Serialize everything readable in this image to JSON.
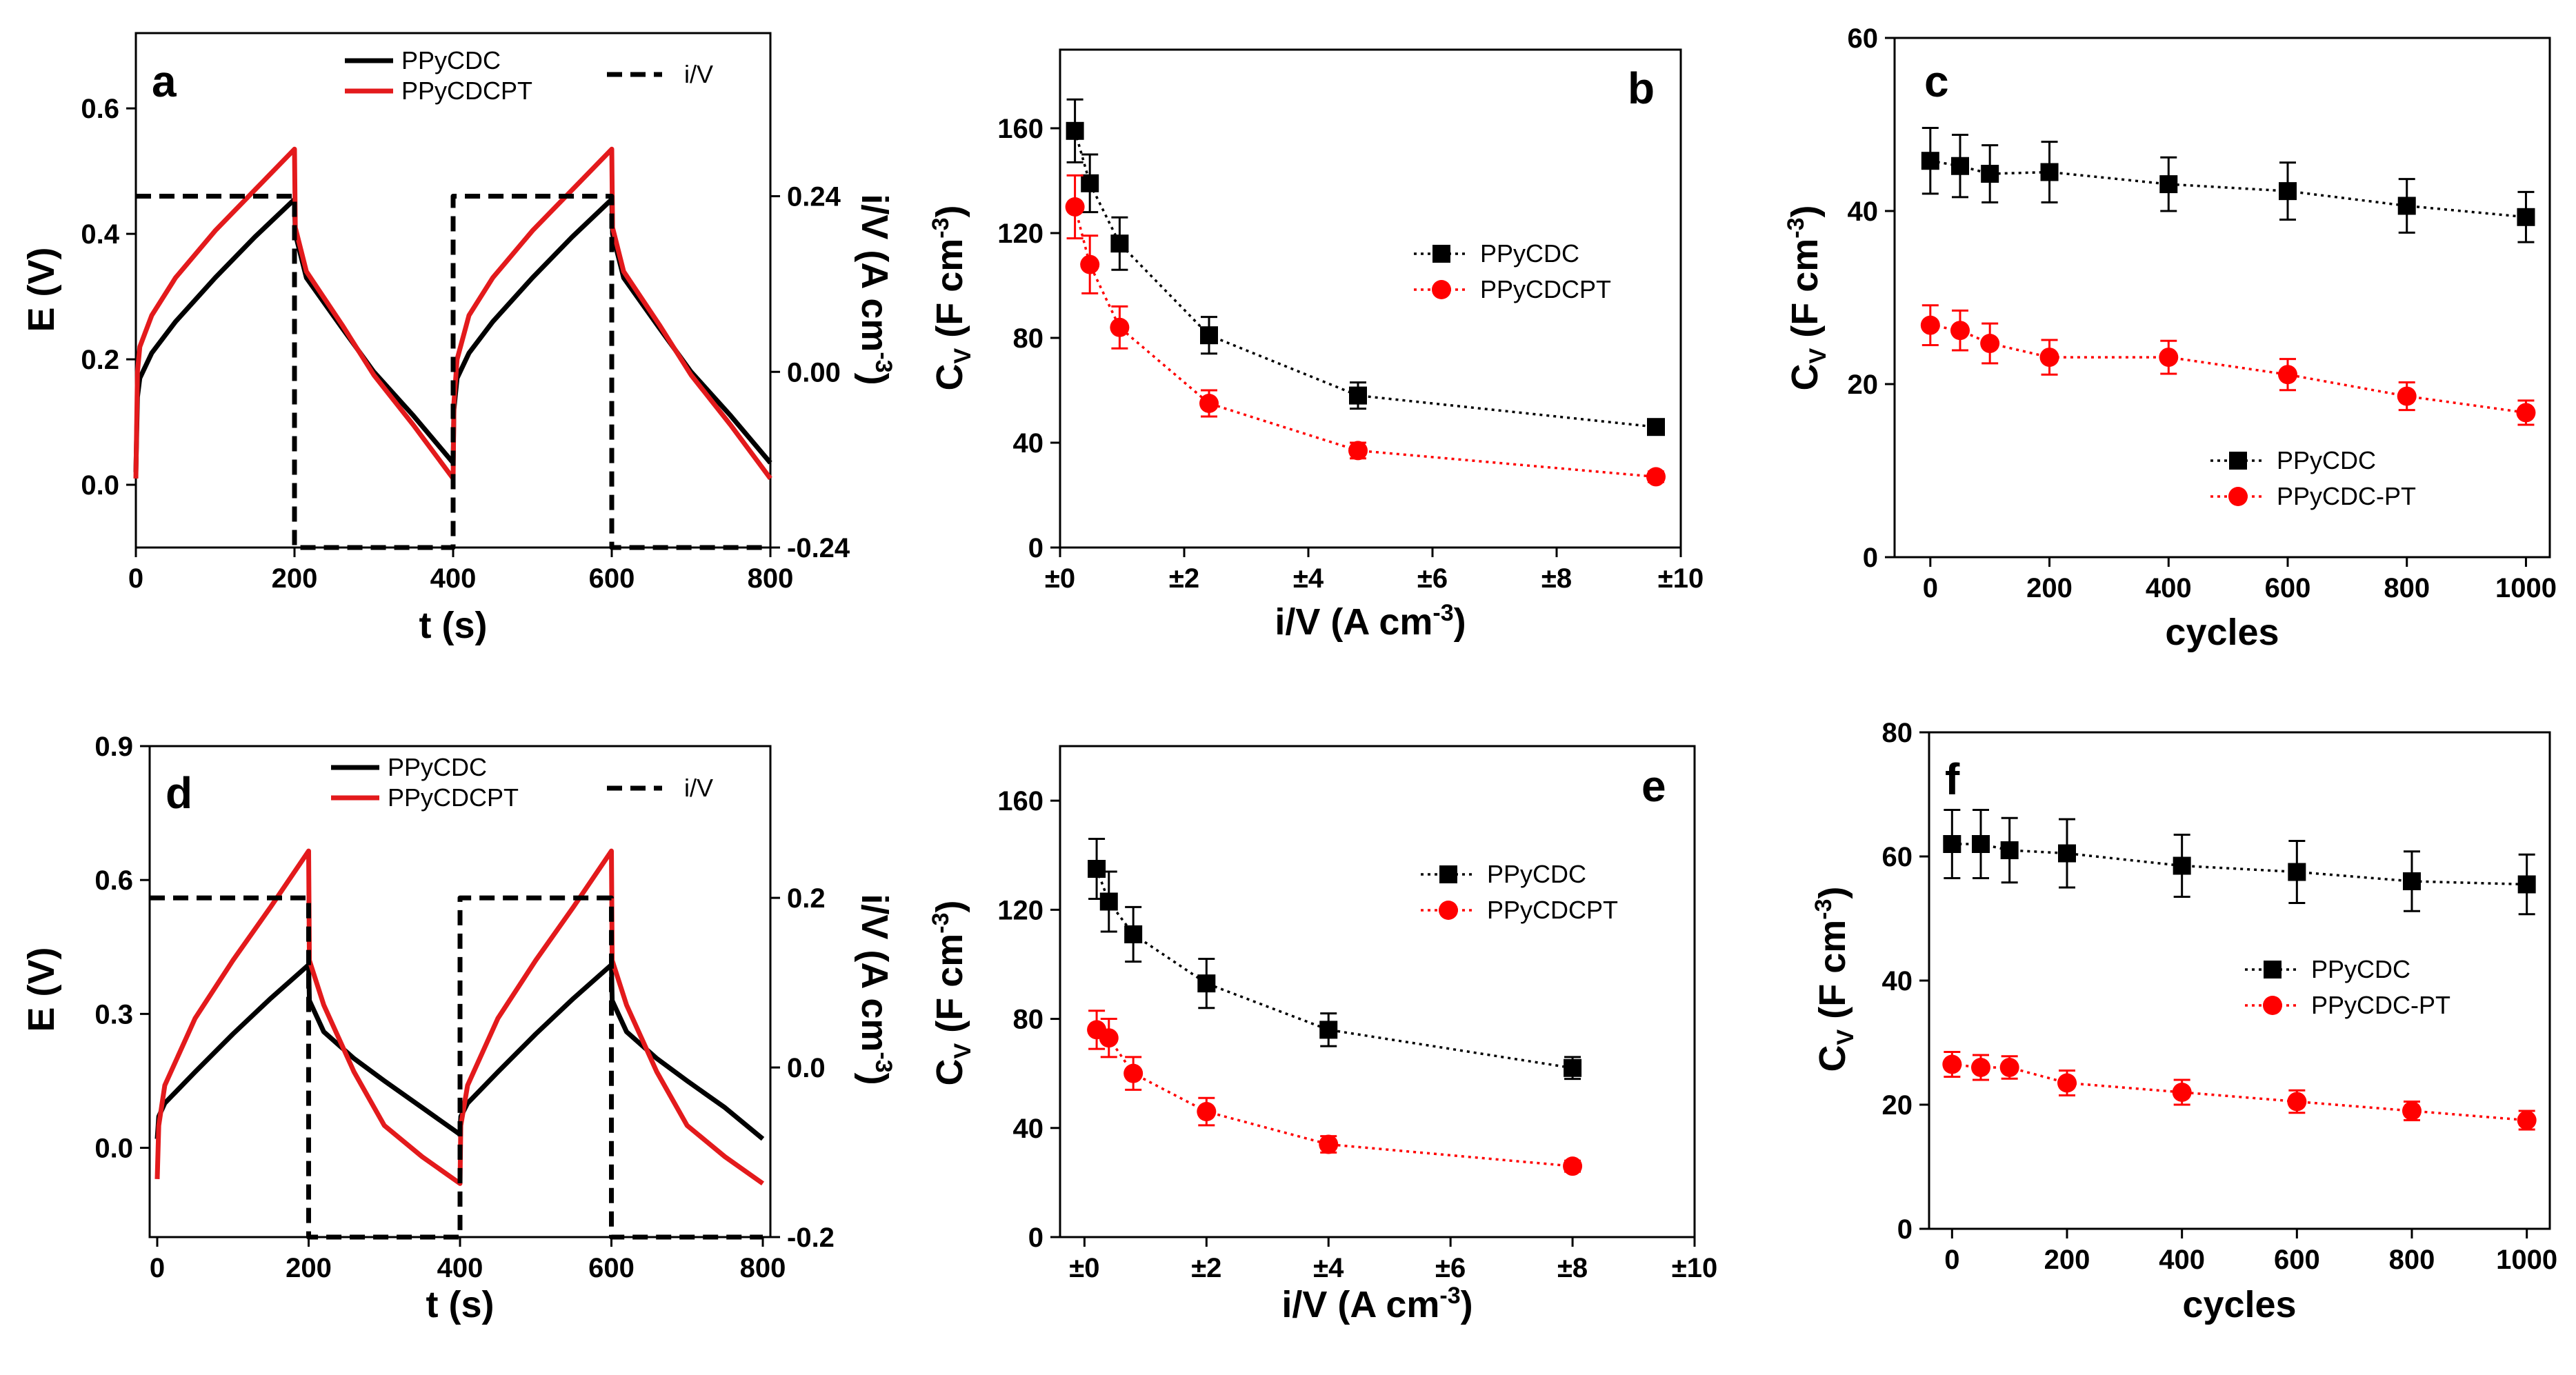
{
  "chart_data": [
    {
      "id": "a",
      "type": "line",
      "panel_letter": "a",
      "xlabel": "t (s)",
      "ylabel": "E (V)",
      "ylabel_right_main": "i/V (A cm",
      "ylabel_right_sup": "-3",
      "ylabel_right_tail": ")",
      "xlim": [
        0,
        800
      ],
      "ylim": [
        -0.1,
        0.72
      ],
      "xticks": [
        0,
        200,
        400,
        600,
        800
      ],
      "xtick_labels": [
        "0",
        "200",
        "400",
        "600",
        "800"
      ],
      "yticks": [
        0.0,
        0.2,
        0.4,
        0.6
      ],
      "ytick_labels": [
        "0.0",
        "0.2",
        "0.4",
        "0.6"
      ],
      "yticks_right": [
        0.24,
        0.0,
        -0.24
      ],
      "yticks_right_labels": [
        "0.24",
        "0.00",
        "-0.24"
      ],
      "right_high_E": 0.46,
      "right_low_E": -0.1,
      "series": [
        {
          "name": "PPyCDC",
          "color": "#000000",
          "style": "solid",
          "x": [
            0,
            2,
            5,
            20,
            50,
            100,
            150,
            200,
            201,
            215,
            260,
            300,
            350,
            400,
            401,
            405,
            420,
            450,
            500,
            550,
            600,
            601,
            615,
            660,
            700,
            750,
            800
          ],
          "y": [
            0.02,
            0.14,
            0.17,
            0.21,
            0.26,
            0.33,
            0.395,
            0.455,
            0.4,
            0.33,
            0.25,
            0.18,
            0.11,
            0.035,
            0.12,
            0.17,
            0.21,
            0.26,
            0.33,
            0.395,
            0.455,
            0.4,
            0.33,
            0.25,
            0.18,
            0.11,
            0.035
          ]
        },
        {
          "name": "PPyCDCPT",
          "color": "#e31a1c",
          "style": "solid",
          "x": [
            0,
            2,
            5,
            20,
            50,
            100,
            150,
            200,
            201,
            215,
            260,
            300,
            350,
            400,
            401,
            405,
            420,
            450,
            500,
            550,
            600,
            601,
            615,
            660,
            700,
            750,
            800
          ],
          "y": [
            0.01,
            0.18,
            0.22,
            0.27,
            0.33,
            0.405,
            0.47,
            0.535,
            0.41,
            0.34,
            0.255,
            0.175,
            0.095,
            0.01,
            0.13,
            0.2,
            0.27,
            0.33,
            0.405,
            0.47,
            0.535,
            0.41,
            0.34,
            0.255,
            0.175,
            0.095,
            0.01
          ]
        },
        {
          "name": "i/V",
          "color": "#000000",
          "style": "dashed",
          "axis": "right",
          "x": [
            0,
            200,
            200,
            400,
            400,
            600,
            600,
            800
          ],
          "level": [
            "high",
            "high",
            "low",
            "low",
            "high",
            "high",
            "low",
            "low"
          ]
        }
      ],
      "legend": [
        "PPyCDC",
        "PPyCDCPT",
        "i/V"
      ]
    },
    {
      "id": "b",
      "type": "line",
      "panel_letter": "b",
      "xlabel_main": "i/V (A cm",
      "xlabel_sup": "-3",
      "xlabel_tail": ")",
      "ylabel_main": "C",
      "ylabel_sub": "V",
      "ylabel_tail": " (F cm",
      "ylabel_sup": "-3",
      "ylabel_end": ")",
      "xlim": [
        0,
        10
      ],
      "ylim": [
        0,
        190
      ],
      "xticks": [
        0,
        2,
        4,
        6,
        8,
        10
      ],
      "xtick_labels": [
        "±0",
        "±2",
        "±4",
        "±6",
        "±8",
        "±10"
      ],
      "yticks": [
        0,
        40,
        80,
        120,
        160
      ],
      "ytick_labels": [
        "0",
        "40",
        "80",
        "120",
        "160"
      ],
      "series": [
        {
          "name": "PPyCDC",
          "color": "#000000",
          "marker": "square",
          "x": [
            0.24,
            0.48,
            0.96,
            2.4,
            4.8,
            9.6
          ],
          "y": [
            159,
            139,
            116,
            81,
            58,
            46
          ],
          "err": [
            12,
            11,
            10,
            7,
            5,
            2
          ]
        },
        {
          "name": "PPyCDCPT",
          "color": "#ff0000",
          "marker": "circle",
          "x": [
            0.24,
            0.48,
            0.96,
            2.4,
            4.8,
            9.6
          ],
          "y": [
            130,
            108,
            84,
            55,
            37,
            27
          ],
          "err": [
            12,
            11,
            8,
            5,
            3,
            2
          ]
        }
      ],
      "legend": [
        "PPyCDC",
        "PPyCDCPT"
      ]
    },
    {
      "id": "c",
      "type": "line",
      "panel_letter": "c",
      "xlabel": "cycles",
      "ylabel_main": "C",
      "ylabel_sub": "V",
      "ylabel_tail": " (F cm",
      "ylabel_sup": "-3",
      "ylabel_end": ")",
      "xlim": [
        -60,
        1040
      ],
      "ylim": [
        0,
        60
      ],
      "xticks": [
        0,
        200,
        400,
        600,
        800,
        1000
      ],
      "xtick_labels": [
        "0",
        "200",
        "400",
        "600",
        "800",
        "1000"
      ],
      "yticks": [
        0,
        20,
        40,
        60
      ],
      "ytick_labels": [
        "0",
        "20",
        "40",
        "60"
      ],
      "series": [
        {
          "name": "PPyCDC",
          "color": "#000000",
          "marker": "square",
          "x": [
            0,
            50,
            100,
            200,
            400,
            600,
            800,
            1000
          ],
          "y": [
            45.8,
            45.2,
            44.3,
            44.5,
            43.1,
            42.3,
            40.6,
            39.3
          ],
          "err": [
            3.8,
            3.6,
            3.3,
            3.5,
            3.1,
            3.3,
            3.1,
            2.9
          ]
        },
        {
          "name": "PPyCDC-PT",
          "color": "#ff0000",
          "marker": "circle",
          "x": [
            0,
            50,
            100,
            200,
            400,
            600,
            800,
            1000
          ],
          "y": [
            26.8,
            26.2,
            24.7,
            23.1,
            23.1,
            21.1,
            18.6,
            16.7
          ],
          "err": [
            2.3,
            2.3,
            2.3,
            2.0,
            1.9,
            1.8,
            1.6,
            1.4
          ]
        }
      ],
      "legend": [
        "PPyCDC",
        "PPyCDC-PT"
      ]
    },
    {
      "id": "d",
      "type": "line",
      "panel_letter": "d",
      "xlabel": "t (s)",
      "ylabel": "E (V)",
      "ylabel_right_main": "i/V (A cm",
      "ylabel_right_sup": "-3",
      "ylabel_right_tail": ")",
      "xlim": [
        -10,
        810
      ],
      "ylim": [
        -0.2,
        0.9
      ],
      "xticks": [
        0,
        200,
        400,
        600,
        800
      ],
      "xtick_labels": [
        "0",
        "200",
        "400",
        "600",
        "800"
      ],
      "yticks": [
        0.0,
        0.3,
        0.6,
        0.9
      ],
      "ytick_labels": [
        "0.0",
        "0.3",
        "0.6",
        "0.9"
      ],
      "yticks_right": [
        0.2,
        0.0,
        -0.2
      ],
      "yticks_right_labels": [
        "0.2",
        "0.0",
        "-0.2"
      ],
      "right_high_E": 0.56,
      "right_low_E": -0.2,
      "series": [
        {
          "name": "PPyCDC",
          "color": "#000000",
          "style": "solid",
          "x": [
            0,
            2,
            10,
            50,
            100,
            150,
            200,
            201,
            220,
            260,
            300,
            350,
            400,
            401,
            410,
            450,
            500,
            550,
            600,
            601,
            620,
            660,
            700,
            750,
            800
          ],
          "y": [
            0.02,
            0.07,
            0.1,
            0.17,
            0.255,
            0.335,
            0.41,
            0.33,
            0.26,
            0.2,
            0.15,
            0.09,
            0.03,
            0.07,
            0.1,
            0.17,
            0.255,
            0.335,
            0.41,
            0.33,
            0.26,
            0.2,
            0.15,
            0.09,
            0.02
          ]
        },
        {
          "name": "PPyCDCPT",
          "color": "#e31a1c",
          "style": "solid",
          "x": [
            0,
            2,
            10,
            50,
            100,
            150,
            200,
            201,
            220,
            260,
            300,
            350,
            400,
            401,
            410,
            450,
            500,
            550,
            600,
            601,
            620,
            660,
            700,
            750,
            800
          ],
          "y": [
            -0.07,
            0.05,
            0.14,
            0.29,
            0.42,
            0.54,
            0.665,
            0.42,
            0.32,
            0.17,
            0.05,
            -0.02,
            -0.08,
            0.05,
            0.14,
            0.29,
            0.42,
            0.54,
            0.665,
            0.42,
            0.32,
            0.17,
            0.05,
            -0.02,
            -0.08
          ]
        },
        {
          "name": "i/V",
          "color": "#000000",
          "style": "dashed",
          "axis": "right",
          "x": [
            -10,
            200,
            200,
            400,
            400,
            600,
            600,
            800
          ],
          "level": [
            "high",
            "high",
            "low",
            "low",
            "high",
            "high",
            "low",
            "low"
          ]
        }
      ],
      "legend": [
        "PPyCDC",
        "PPyCDCPT",
        "i/V"
      ]
    },
    {
      "id": "e",
      "type": "line",
      "panel_letter": "e",
      "xlabel_main": "i/V (A cm",
      "xlabel_sup": "-3",
      "xlabel_tail": ")",
      "ylabel_main": "C",
      "ylabel_sub": "V",
      "ylabel_tail": " (F cm",
      "ylabel_sup": "-3",
      "ylabel_end": ")",
      "xlim": [
        -0.4,
        10
      ],
      "ylim": [
        0,
        180
      ],
      "xticks": [
        0,
        2,
        4,
        6,
        8,
        10
      ],
      "xtick_labels": [
        "±0",
        "±2",
        "±4",
        "±6",
        "±8",
        "±10"
      ],
      "yticks": [
        0,
        40,
        80,
        120,
        160
      ],
      "ytick_labels": [
        "0",
        "40",
        "80",
        "120",
        "160"
      ],
      "series": [
        {
          "name": "PPyCDC",
          "color": "#000000",
          "marker": "square",
          "x": [
            0.2,
            0.4,
            0.8,
            2,
            4,
            8
          ],
          "y": [
            135,
            123,
            111,
            93,
            76,
            62
          ],
          "err": [
            11,
            11,
            10,
            9,
            6,
            4
          ]
        },
        {
          "name": "PPyCDCPT",
          "color": "#ff0000",
          "marker": "circle",
          "x": [
            0.2,
            0.4,
            0.8,
            2,
            4,
            8
          ],
          "y": [
            76,
            73,
            60,
            46,
            34,
            26
          ],
          "err": [
            7,
            7,
            6,
            5,
            3,
            2
          ]
        }
      ],
      "legend": [
        "PPyCDC",
        "PPyCDCPT"
      ]
    },
    {
      "id": "f",
      "type": "line",
      "panel_letter": "f",
      "xlabel": "cycles",
      "ylabel_main": "C",
      "ylabel_sub": "V",
      "ylabel_tail": " (F cm",
      "ylabel_sup": "-3",
      "ylabel_end": ")",
      "xlim": [
        -40,
        1040
      ],
      "ylim": [
        0,
        80
      ],
      "xticks": [
        0,
        200,
        400,
        600,
        800,
        1000
      ],
      "xtick_labels": [
        "0",
        "200",
        "400",
        "600",
        "800",
        "1000"
      ],
      "yticks": [
        0,
        20,
        40,
        60,
        80
      ],
      "ytick_labels": [
        "0",
        "20",
        "40",
        "60",
        "80"
      ],
      "series": [
        {
          "name": "PPyCDC",
          "color": "#000000",
          "marker": "square",
          "x": [
            0,
            50,
            100,
            200,
            400,
            600,
            800,
            1000
          ],
          "y": [
            62,
            62,
            61,
            60.5,
            58.5,
            57.5,
            56,
            55.5
          ],
          "err": [
            5.5,
            5.5,
            5.2,
            5.5,
            5.0,
            5.0,
            4.8,
            4.8
          ]
        },
        {
          "name": "PPyCDC-PT",
          "color": "#ff0000",
          "marker": "circle",
          "x": [
            0,
            50,
            100,
            200,
            400,
            600,
            800,
            1000
          ],
          "y": [
            26.5,
            26,
            26,
            23.5,
            22,
            20.5,
            19,
            17.5
          ],
          "err": [
            2,
            2,
            1.8,
            2,
            2,
            1.8,
            1.5,
            1.5
          ]
        }
      ],
      "legend": [
        "PPyCDC",
        "PPyCDC-PT"
      ]
    }
  ]
}
